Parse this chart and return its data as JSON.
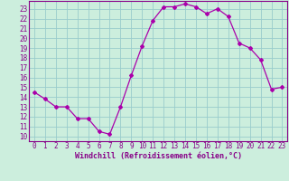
{
  "x": [
    0,
    1,
    2,
    3,
    4,
    5,
    6,
    7,
    8,
    9,
    10,
    11,
    12,
    13,
    14,
    15,
    16,
    17,
    18,
    19,
    20,
    21,
    22,
    23
  ],
  "y": [
    14.5,
    13.8,
    13.0,
    13.0,
    11.8,
    11.8,
    10.5,
    10.2,
    13.0,
    16.2,
    19.2,
    21.8,
    23.2,
    23.2,
    23.5,
    23.2,
    22.5,
    23.0,
    22.2,
    19.5,
    19.0,
    17.8,
    14.8,
    15.0
  ],
  "line_color": "#aa00aa",
  "marker": "D",
  "marker_size": 2.0,
  "bg_color": "#cceedd",
  "grid_color": "#99cccc",
  "xlabel": "Windchill (Refroidissement éolien,°C)",
  "xlabel_color": "#880088",
  "tick_color": "#880088",
  "label_fontsize": 5.5,
  "xlabel_fontsize": 6.0,
  "ylim": [
    9.5,
    23.8
  ],
  "xlim": [
    -0.5,
    23.5
  ],
  "yticks": [
    10,
    11,
    12,
    13,
    14,
    15,
    16,
    17,
    18,
    19,
    20,
    21,
    22,
    23
  ],
  "xticks": [
    0,
    1,
    2,
    3,
    4,
    5,
    6,
    7,
    8,
    9,
    10,
    11,
    12,
    13,
    14,
    15,
    16,
    17,
    18,
    19,
    20,
    21,
    22,
    23
  ]
}
